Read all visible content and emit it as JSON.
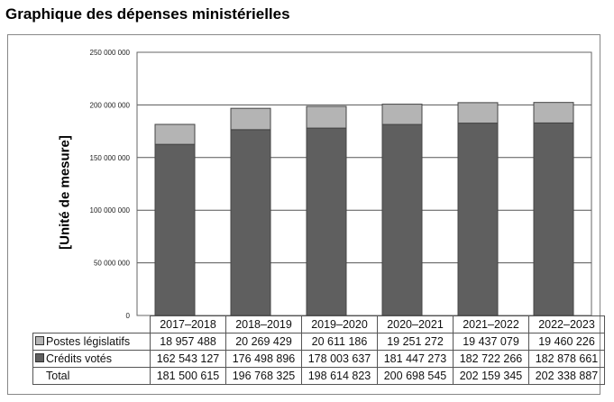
{
  "title": "Graphique des dépenses ministérielles",
  "chart_data": {
    "type": "bar",
    "stacked": true,
    "title": "Graphique des dépenses ministérielles",
    "ylabel": "[Unité de mesure]",
    "ylim": [
      0,
      250000000
    ],
    "yticks": [
      "0",
      "50 000 000",
      "100 000 000",
      "150 000 000",
      "200 000 000",
      "250 000 000"
    ],
    "grid": true,
    "legend": "table-left",
    "categories": [
      "2017–2018",
      "2018–2019",
      "2019–2020",
      "2020–2021",
      "2021–2022",
      "2022–2023"
    ],
    "series": [
      {
        "name": "Postes législatifs",
        "color": "#b4b4b4",
        "values": [
          18957488,
          20269429,
          20611186,
          19251272,
          19437079,
          19460226
        ],
        "labels": [
          "18 957 488",
          "20 269 429",
          "20 611 186",
          "19 251 272",
          "19 437 079",
          "19 460 226"
        ]
      },
      {
        "name": "Crédits votés",
        "color": "#5f5f5f",
        "values": [
          162543127,
          176498896,
          178003637,
          181447273,
          182722266,
          182878661
        ],
        "labels": [
          "162 543 127",
          "176 498 896",
          "178 003 637",
          "181 447 273",
          "182 722 266",
          "182 878 661"
        ]
      }
    ],
    "total": {
      "name": "Total",
      "labels": [
        "181 500 615",
        "196 768 325",
        "198 614 823",
        "200 698 545",
        "202 159 345",
        "202 338 887"
      ]
    }
  }
}
